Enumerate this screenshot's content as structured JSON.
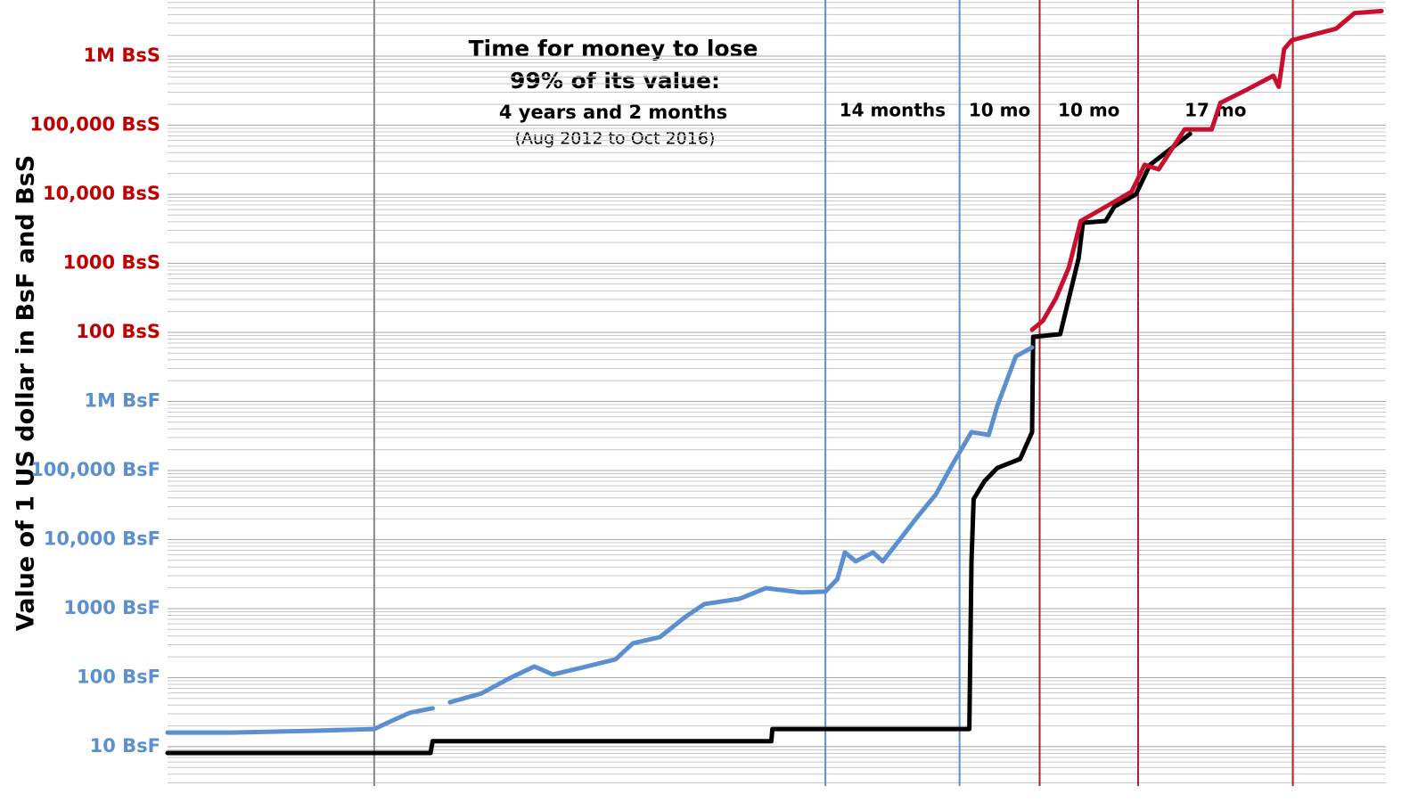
{
  "chart_data": {
    "type": "line",
    "y_label": "Value of 1 US dollar in BsF and BsS",
    "log_y": true,
    "minor_grid": true,
    "ylim": [
      2.7,
      650000000000
    ],
    "yticks": [
      {
        "value": 10,
        "label": "10 BsF",
        "color": "#5b8fd0"
      },
      {
        "value": 100,
        "label": "100 BsF",
        "color": "#5b8fd0"
      },
      {
        "value": 1000,
        "label": "1000 BsF",
        "color": "#5b8fd0"
      },
      {
        "value": 10000,
        "label": "10,000 BsF",
        "color": "#5b8fd0"
      },
      {
        "value": 100000,
        "label": "100,000 BsF",
        "color": "#5b8fd0"
      },
      {
        "value": 1000000,
        "label": "1M BsF",
        "color": "#5b8fd0"
      },
      {
        "value": 10000000,
        "label": "100 BsS",
        "color": "#c00000"
      },
      {
        "value": 100000000,
        "label": "1000 BsS",
        "color": "#c00000"
      },
      {
        "value": 1000000000,
        "label": "10,000 BsS",
        "color": "#c00000"
      },
      {
        "value": 10000000000,
        "label": "100,000 BsS",
        "color": "#c00000"
      },
      {
        "value": 100000000000,
        "label": "1M BsS",
        "color": "#c00000"
      }
    ],
    "xlim": [
      2010.67,
      2021.93
    ],
    "vlines": [
      {
        "x": 2012.58,
        "color": "#888888"
      },
      {
        "x": 2016.75,
        "color": "#5b8fd0"
      },
      {
        "x": 2017.99,
        "color": "#5b8fd0"
      },
      {
        "x": 2018.73,
        "color": "#b01c2e"
      },
      {
        "x": 2019.64,
        "color": "#b01c2e"
      },
      {
        "x": 2021.07,
        "color": "#b01c2e"
      }
    ],
    "intervals": [
      "14 months",
      "10 mo",
      "10 mo",
      "17 mo"
    ],
    "annotation": [
      "Time for money to lose",
      "99% of its value:",
      "4 years and 2 months",
      "(Aug 2012 to Oct 2016)"
    ],
    "series": [
      {
        "color": "#000000",
        "x": [
          2010.67,
          2013.1,
          2013.12,
          2016.25,
          2016.26,
          2018.08,
          2018.1,
          2018.12,
          2018.22,
          2018.34,
          2018.55,
          2018.66,
          2018.67,
          2018.92,
          2018.98,
          2019.09,
          2019.13,
          2019.34,
          2019.42,
          2019.62,
          2019.75,
          2019.91,
          2020.12
        ],
        "values": [
          8.1,
          8.1,
          12,
          12,
          18,
          18,
          4830,
          38600,
          70000,
          109000,
          147000,
          359000,
          8600000,
          9400000,
          23000000,
          118000000,
          386000000,
          410000000,
          660000000,
          1000000000,
          2670000000,
          4160000000,
          7500000000
        ]
      },
      {
        "color": "#5b8fd0",
        "x": [
          2010.67,
          2011.26,
          2012.0,
          2012.58,
          2012.75,
          2012.91,
          2013.12,
          2013.2,
          2013.28,
          2013.57,
          2013.82,
          2014.06,
          2014.23,
          2014.47,
          2014.81,
          2014.97,
          2015.22,
          2015.46,
          2015.63,
          2015.96,
          2016.2,
          2016.53,
          2016.75,
          2016.86,
          2016.93,
          2017.03,
          2017.19,
          2017.28,
          2017.44,
          2017.6,
          2017.77,
          2017.93,
          2018.1,
          2018.26,
          2018.34,
          2018.51,
          2018.66
        ],
        "values": [
          16,
          16,
          17,
          18,
          24,
          31,
          36,
          null,
          44,
          59,
          96,
          145,
          111,
          136,
          184,
          314,
          386,
          766,
          1160,
          1390,
          1980,
          1710,
          1760,
          2670,
          6500,
          4830,
          6500,
          4830,
          10100,
          21300,
          44900,
          127000,
          359000,
          328000,
          875000,
          4490000,
          6040000
        ]
      },
      {
        "color": "#c8102e",
        "x": [
          2018.66,
          2018.76,
          2018.88,
          2019.0,
          2019.11,
          2019.37,
          2019.58,
          2019.7,
          2019.83,
          2020.07,
          2020.32,
          2020.4,
          2020.65,
          2020.89,
          2020.94,
          2020.99,
          2021.06,
          2021.47,
          2021.64,
          2021.89
        ],
        "values": [
          10900000,
          14700000,
          31000000,
          87000000,
          410000000,
          700000000,
          1090000000,
          2670000000,
          2300000000,
          8700000000,
          8700000000,
          21000000000,
          33000000000,
          52000000000,
          36000000000,
          127000000000,
          170000000000,
          250000000000,
          420000000000,
          450000000000
        ]
      }
    ]
  }
}
